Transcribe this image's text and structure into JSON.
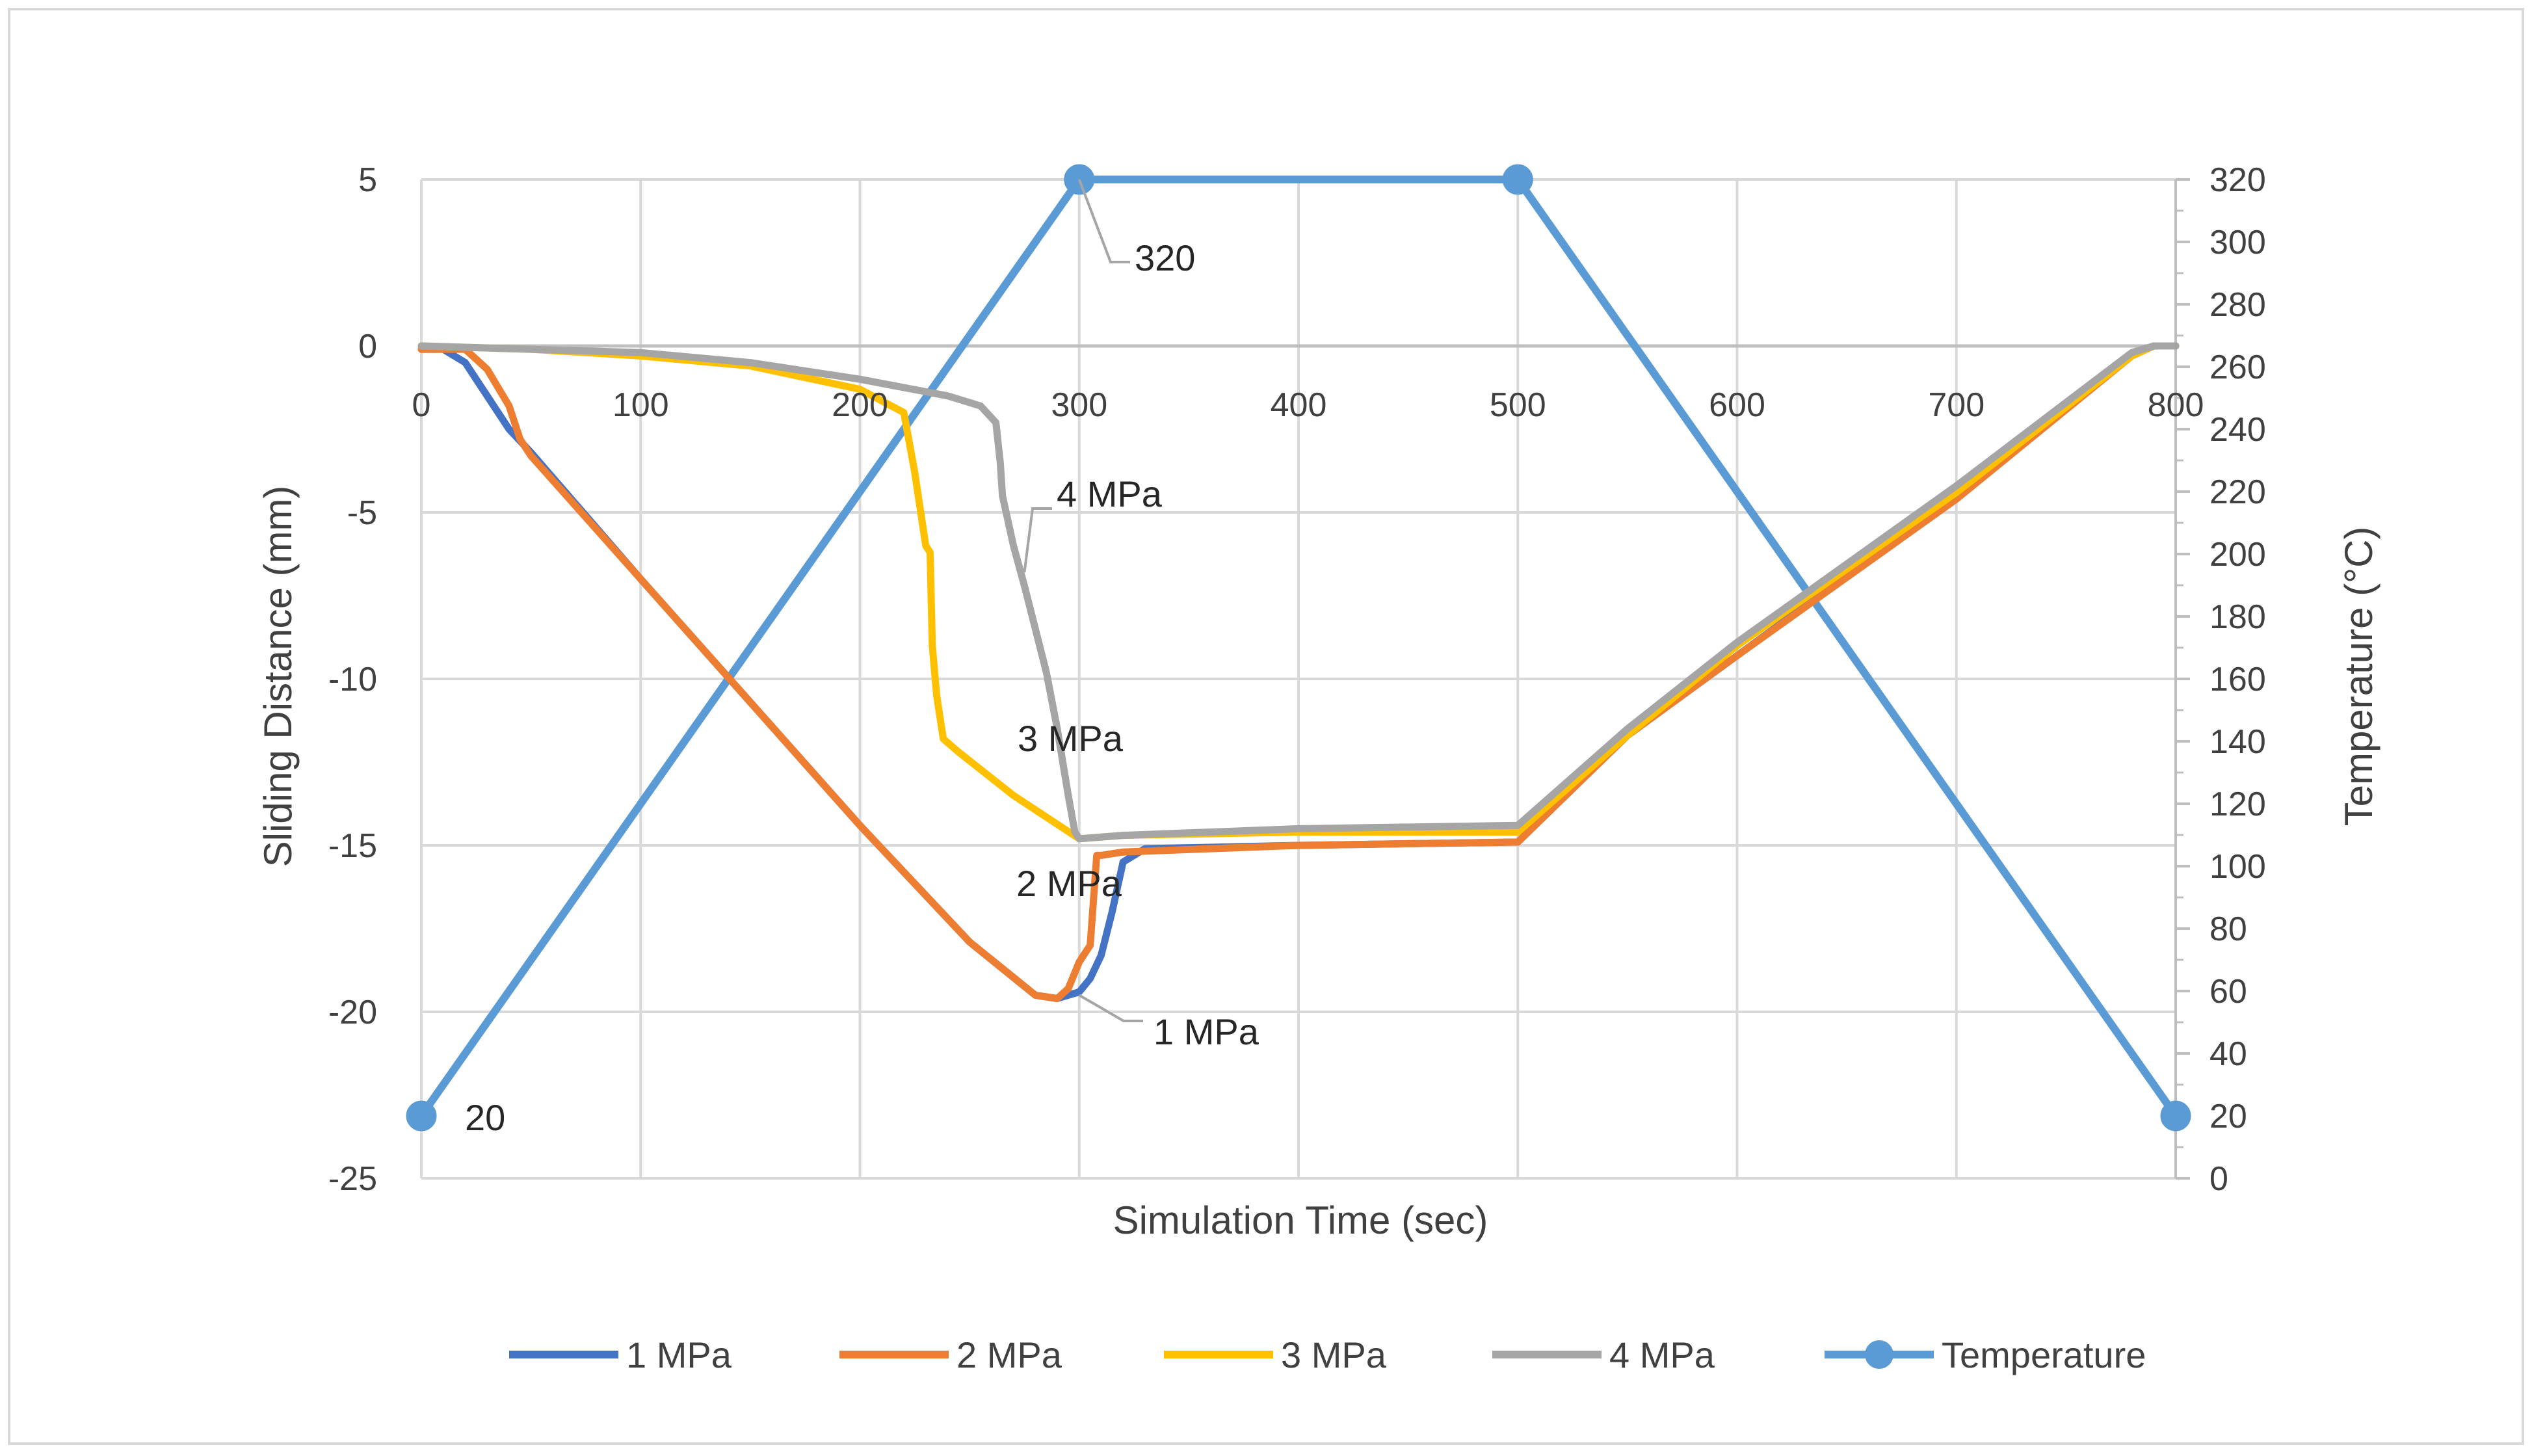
{
  "chart_data": {
    "type": "line",
    "title": "",
    "xlabel": "Simulation Time (sec)",
    "ylabel": "Sliding Distance (mm)",
    "y2label": "Temperature (°C)",
    "xlim": [
      0,
      800
    ],
    "ylim": [
      -25,
      5
    ],
    "y2lim": [
      0,
      320
    ],
    "xticks": [
      "0",
      "100",
      "200",
      "300",
      "400",
      "500",
      "600",
      "700",
      "800"
    ],
    "yticks": [
      "5",
      "0",
      "-5",
      "-10",
      "-15",
      "-20",
      "-25"
    ],
    "y2ticks": [
      "320",
      "300",
      "280",
      "260",
      "240",
      "220",
      "200",
      "180",
      "160",
      "140",
      "120",
      "100",
      "80",
      "60",
      "40",
      "20",
      "0"
    ],
    "legend_position": "bottom",
    "colors": {
      "s1": "#4472c4",
      "s2": "#ed7d31",
      "s3": "#ffc000",
      "s4": "#a5a5a5",
      "temp": "#5b9bd5",
      "grid": "#d9d9d9",
      "annot_line": "#a5a5a5"
    },
    "series": [
      {
        "name": "1 MPa",
        "axis": "left",
        "color": "#4472c4",
        "x": [
          0,
          10,
          20,
          30,
          40,
          50,
          100,
          150,
          200,
          250,
          280,
          290,
          300,
          305,
          310,
          315,
          320,
          330,
          400,
          500,
          550,
          600,
          700,
          780,
          790,
          800
        ],
        "y": [
          -0.1,
          -0.1,
          -0.5,
          -1.5,
          -2.5,
          -3.2,
          -7.0,
          -10.7,
          -14.4,
          -17.9,
          -19.5,
          -19.6,
          -19.4,
          -19.0,
          -18.3,
          -17.0,
          -15.5,
          -15.1,
          -15.0,
          -14.9,
          -11.7,
          -9.3,
          -4.5,
          -0.3,
          0,
          0
        ]
      },
      {
        "name": "2 MPa",
        "axis": "left",
        "color": "#ed7d31",
        "x": [
          0,
          20,
          30,
          40,
          45,
          50,
          100,
          150,
          200,
          250,
          280,
          290,
          295,
          300,
          305,
          308,
          310,
          320,
          400,
          500,
          550,
          600,
          700,
          780,
          790,
          800
        ],
        "y": [
          -0.1,
          -0.1,
          -0.7,
          -1.8,
          -2.8,
          -3.3,
          -7.0,
          -10.7,
          -14.4,
          -17.9,
          -19.5,
          -19.6,
          -19.3,
          -18.5,
          -18.0,
          -15.3,
          -15.3,
          -15.2,
          -15.0,
          -14.9,
          -11.7,
          -9.3,
          -4.6,
          -0.3,
          0,
          0
        ]
      },
      {
        "name": "3 MPa",
        "axis": "left",
        "color": "#ffc000",
        "x": [
          0,
          50,
          100,
          150,
          200,
          220,
          225,
          230,
          232,
          233,
          235,
          238,
          245,
          270,
          300,
          320,
          400,
          500,
          550,
          600,
          700,
          780,
          790,
          800
        ],
        "y": [
          0,
          -0.1,
          -0.3,
          -0.6,
          -1.3,
          -2.0,
          -3.8,
          -6.0,
          -6.2,
          -9.0,
          -10.5,
          -11.8,
          -12.2,
          -13.5,
          -14.8,
          -14.7,
          -14.6,
          -14.6,
          -11.7,
          -9.0,
          -4.4,
          -0.3,
          0,
          0
        ]
      },
      {
        "name": "4 MPa",
        "axis": "left",
        "color": "#a5a5a5",
        "x": [
          0,
          50,
          100,
          150,
          200,
          240,
          255,
          262,
          264,
          265,
          270,
          275,
          280,
          285,
          290,
          295,
          298,
          300,
          320,
          400,
          500,
          550,
          600,
          700,
          780,
          790,
          800
        ],
        "y": [
          0,
          -0.1,
          -0.2,
          -0.5,
          -1.0,
          -1.5,
          -1.8,
          -2.3,
          -3.5,
          -4.5,
          -6.0,
          -7.2,
          -8.5,
          -9.8,
          -11.5,
          -13.5,
          -14.6,
          -14.8,
          -14.7,
          -14.5,
          -14.4,
          -11.5,
          -8.9,
          -4.2,
          -0.2,
          0,
          0
        ]
      },
      {
        "name": "Temperature",
        "axis": "right",
        "color": "#5b9bd5",
        "marker": "circle",
        "x": [
          0,
          300,
          500,
          800
        ],
        "y": [
          20,
          320,
          320,
          20
        ]
      }
    ],
    "annotations": [
      {
        "text": "320",
        "series": "Temperature",
        "x": 300,
        "y": 320
      },
      {
        "text": "20",
        "series": "Temperature",
        "x": 0,
        "y": 20
      },
      {
        "text": "4 MPa",
        "series": "4 MPa",
        "x": 275,
        "y": -6.8
      },
      {
        "text": "3 MPa",
        "series": "3 MPa",
        "x": 250,
        "y": -12.0
      },
      {
        "text": "2 MPa",
        "series": "2 MPa",
        "x": 305,
        "y": -16.0
      },
      {
        "text": "1 MPa",
        "series": "1 MPa",
        "x": 300,
        "y": -19.5
      }
    ]
  }
}
